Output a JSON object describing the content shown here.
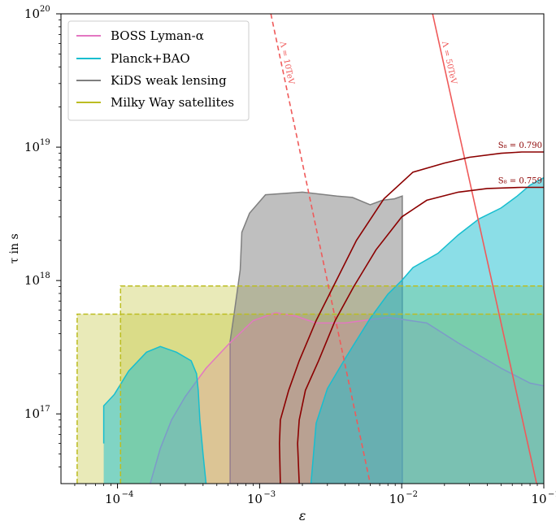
{
  "chart_data": {
    "type": "area",
    "xlabel": "ε",
    "ylabel": "τ in s",
    "xscale": "log",
    "yscale": "log",
    "xlim": [
      4e-05,
      0.1
    ],
    "ylim": [
      3e+16,
      1e+20
    ],
    "x_ticks": [
      {
        "value": 0.0001,
        "base": "10",
        "exp": "−4"
      },
      {
        "value": 0.001,
        "base": "10",
        "exp": "−3"
      },
      {
        "value": 0.01,
        "base": "10",
        "exp": "−2"
      },
      {
        "value": 0.1,
        "base": "10",
        "exp": "−1"
      }
    ],
    "y_ticks": [
      {
        "value": 1e+17,
        "base": "10",
        "exp": "17"
      },
      {
        "value": 1e+18,
        "base": "10",
        "exp": "18"
      },
      {
        "value": 1e+19,
        "base": "10",
        "exp": "19"
      },
      {
        "value": 1e+20,
        "base": "10",
        "exp": "20"
      }
    ],
    "legend_position": "top-left",
    "legend": [
      {
        "label": "BOSS Lyman-α",
        "color": "#e377c2"
      },
      {
        "label": "Planck+BAO",
        "color": "#17becf"
      },
      {
        "label": "KiDS weak lensing",
        "color": "#7f7f7f"
      },
      {
        "label": "Milky Way satellites",
        "color": "#bcbd22"
      }
    ],
    "colors": {
      "boss": "#e377c2",
      "planck": "#17becf",
      "kids": "#7f7f7f",
      "milkyway": "#bcbd22",
      "lambda": "#ef5a5a",
      "s8": "#8b0000"
    },
    "regions": {
      "milkyway": [
        {
          "x0": 5.2e-05,
          "x1": 0.1,
          "y_top": 5.6e+17
        },
        {
          "x0": 0.000105,
          "x1": 0.1,
          "y_top": 9.1e+17
        }
      ],
      "kids": [
        [
          0.00062,
          3e+16
        ],
        [
          0.00062,
          3.5e+17
        ],
        [
          0.00066,
          5.5e+17
        ],
        [
          0.00073,
          1.2e+18
        ],
        [
          0.00075,
          2.3e+18
        ],
        [
          0.00085,
          3.2e+18
        ],
        [
          0.0011,
          4.4e+18
        ],
        [
          0.002,
          4.6e+18
        ],
        [
          0.0035,
          4.3e+18
        ],
        [
          0.0045,
          4.2e+18
        ],
        [
          0.006,
          3.7e+18
        ],
        [
          0.0073,
          4e+18
        ],
        [
          0.0089,
          4.1e+18
        ],
        [
          0.0101,
          4.3e+18
        ],
        [
          0.0101,
          3e+16
        ]
      ],
      "boss": [
        [
          0.00017,
          3e+16
        ],
        [
          0.0002,
          5.5e+16
        ],
        [
          0.00024,
          9e+16
        ],
        [
          0.0003,
          1.35e+17
        ],
        [
          0.00042,
          2.2e+17
        ],
        [
          0.0006,
          3.3e+17
        ],
        [
          0.0009,
          5e+17
        ],
        [
          0.0013,
          5.75e+17
        ],
        [
          0.0018,
          5.4e+17
        ],
        [
          0.0025,
          4.8e+17
        ],
        [
          0.004,
          4.8e+17
        ],
        [
          0.008,
          5.3e+17
        ],
        [
          0.015,
          4.8e+17
        ],
        [
          0.025,
          3.4e+17
        ],
        [
          0.05,
          2.2e+17
        ],
        [
          0.08,
          1.7e+17
        ],
        [
          0.1,
          1.62e+17
        ],
        [
          0.1,
          3e+16
        ]
      ],
      "planck_left": [
        [
          8e-05,
          6e+16
        ],
        [
          8e-05,
          1.15e+17
        ],
        [
          9.5e-05,
          1.4e+17
        ],
        [
          0.00012,
          2.1e+17
        ],
        [
          0.00016,
          2.9e+17
        ],
        [
          0.0002,
          3.2e+17
        ],
        [
          0.00026,
          2.9e+17
        ],
        [
          0.00033,
          2.5e+17
        ],
        [
          0.00036,
          2e+17
        ],
        [
          0.00037,
          1.5e+17
        ],
        [
          0.00038,
          9e+16
        ],
        [
          0.0004,
          5e+16
        ],
        [
          0.00042,
          3e+16
        ],
        [
          8e-05,
          3e+16
        ]
      ],
      "planck_right": [
        [
          0.0023,
          3e+16
        ],
        [
          0.0025,
          8.5e+16
        ],
        [
          0.003,
          1.55e+17
        ],
        [
          0.004,
          2.6e+17
        ],
        [
          0.006,
          5.2e+17
        ],
        [
          0.008,
          7.9e+17
        ],
        [
          0.01,
          1e+18
        ],
        [
          0.012,
          1.25e+18
        ],
        [
          0.018,
          1.6e+18
        ],
        [
          0.025,
          2.2e+18
        ],
        [
          0.035,
          2.9e+18
        ],
        [
          0.05,
          3.5e+18
        ],
        [
          0.065,
          4.3e+18
        ],
        [
          0.08,
          5.2e+18
        ],
        [
          0.1,
          5.9e+18
        ],
        [
          0.1,
          3e+16
        ]
      ]
    },
    "lambda_lines": [
      {
        "label": "Λ = 10TeV",
        "dashed": true,
        "points": [
          [
            0.0012,
            1e+20
          ],
          [
            0.006,
            3e+16
          ]
        ]
      },
      {
        "label": "Λ = 50TeV",
        "dashed": false,
        "points": [
          [
            0.0165,
            1e+20
          ],
          [
            0.089,
            3e+16
          ]
        ]
      }
    ],
    "s8_curves": [
      {
        "label": "S₈ = 0.790",
        "points": [
          [
            0.0014,
            3e+16
          ],
          [
            0.00138,
            6e+16
          ],
          [
            0.0014,
            9e+16
          ],
          [
            0.0016,
            1.5e+17
          ],
          [
            0.0019,
            2.5e+17
          ],
          [
            0.0025,
            5e+17
          ],
          [
            0.0033,
            9e+17
          ],
          [
            0.0048,
            2e+18
          ],
          [
            0.0075,
            4.1e+18
          ],
          [
            0.012,
            6.5e+18
          ],
          [
            0.02,
            7.6e+18
          ],
          [
            0.03,
            8.4e+18
          ],
          [
            0.05,
            9e+18
          ],
          [
            0.07,
            9.2e+18
          ],
          [
            0.1,
            9.2e+18
          ]
        ]
      },
      {
        "label": "S₈ = 0.759",
        "points": [
          [
            0.0019,
            3e+16
          ],
          [
            0.00185,
            6e+16
          ],
          [
            0.0019,
            9e+16
          ],
          [
            0.0021,
            1.5e+17
          ],
          [
            0.0026,
            2.5e+17
          ],
          [
            0.0034,
            5e+17
          ],
          [
            0.0046,
            9e+17
          ],
          [
            0.0066,
            1.7e+18
          ],
          [
            0.01,
            3e+18
          ],
          [
            0.015,
            4e+18
          ],
          [
            0.025,
            4.6e+18
          ],
          [
            0.04,
            4.9e+18
          ],
          [
            0.07,
            5e+18
          ],
          [
            0.1,
            5e+18
          ]
        ]
      }
    ]
  }
}
